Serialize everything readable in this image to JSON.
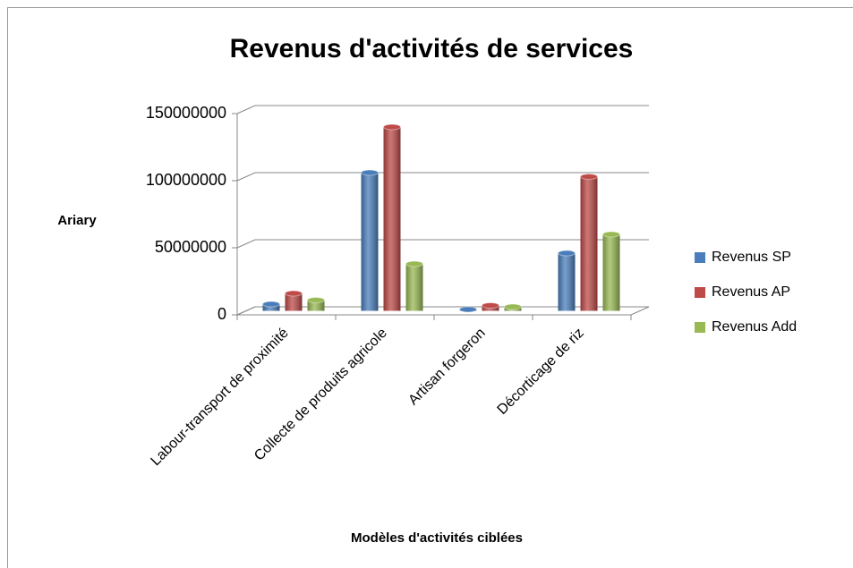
{
  "chart_data": {
    "type": "bar",
    "title": "Revenus d'activités de services",
    "y_label": "Ariary",
    "x_label": "Modèles d'activités ciblées",
    "categories": [
      "Labour-transport de proximité",
      "Collecte de produits agricole",
      "Artisan forgeron",
      "Décorticage de riz"
    ],
    "series": [
      {
        "name": "Revenus SP",
        "color": "#4a7ebb",
        "values": [
          5000000,
          103000000,
          1000000,
          43000000
        ]
      },
      {
        "name": "Revenus AP",
        "color": "#be4b48",
        "values": [
          13000000,
          137000000,
          4000000,
          100000000
        ]
      },
      {
        "name": "Revenus Add",
        "color": "#98b954",
        "values": [
          8000000,
          35000000,
          3000000,
          57000000
        ]
      }
    ],
    "ylim": [
      0,
      150000000
    ],
    "yticks": [
      0,
      50000000,
      100000000,
      150000000
    ],
    "grid": true,
    "legend": "right"
  }
}
